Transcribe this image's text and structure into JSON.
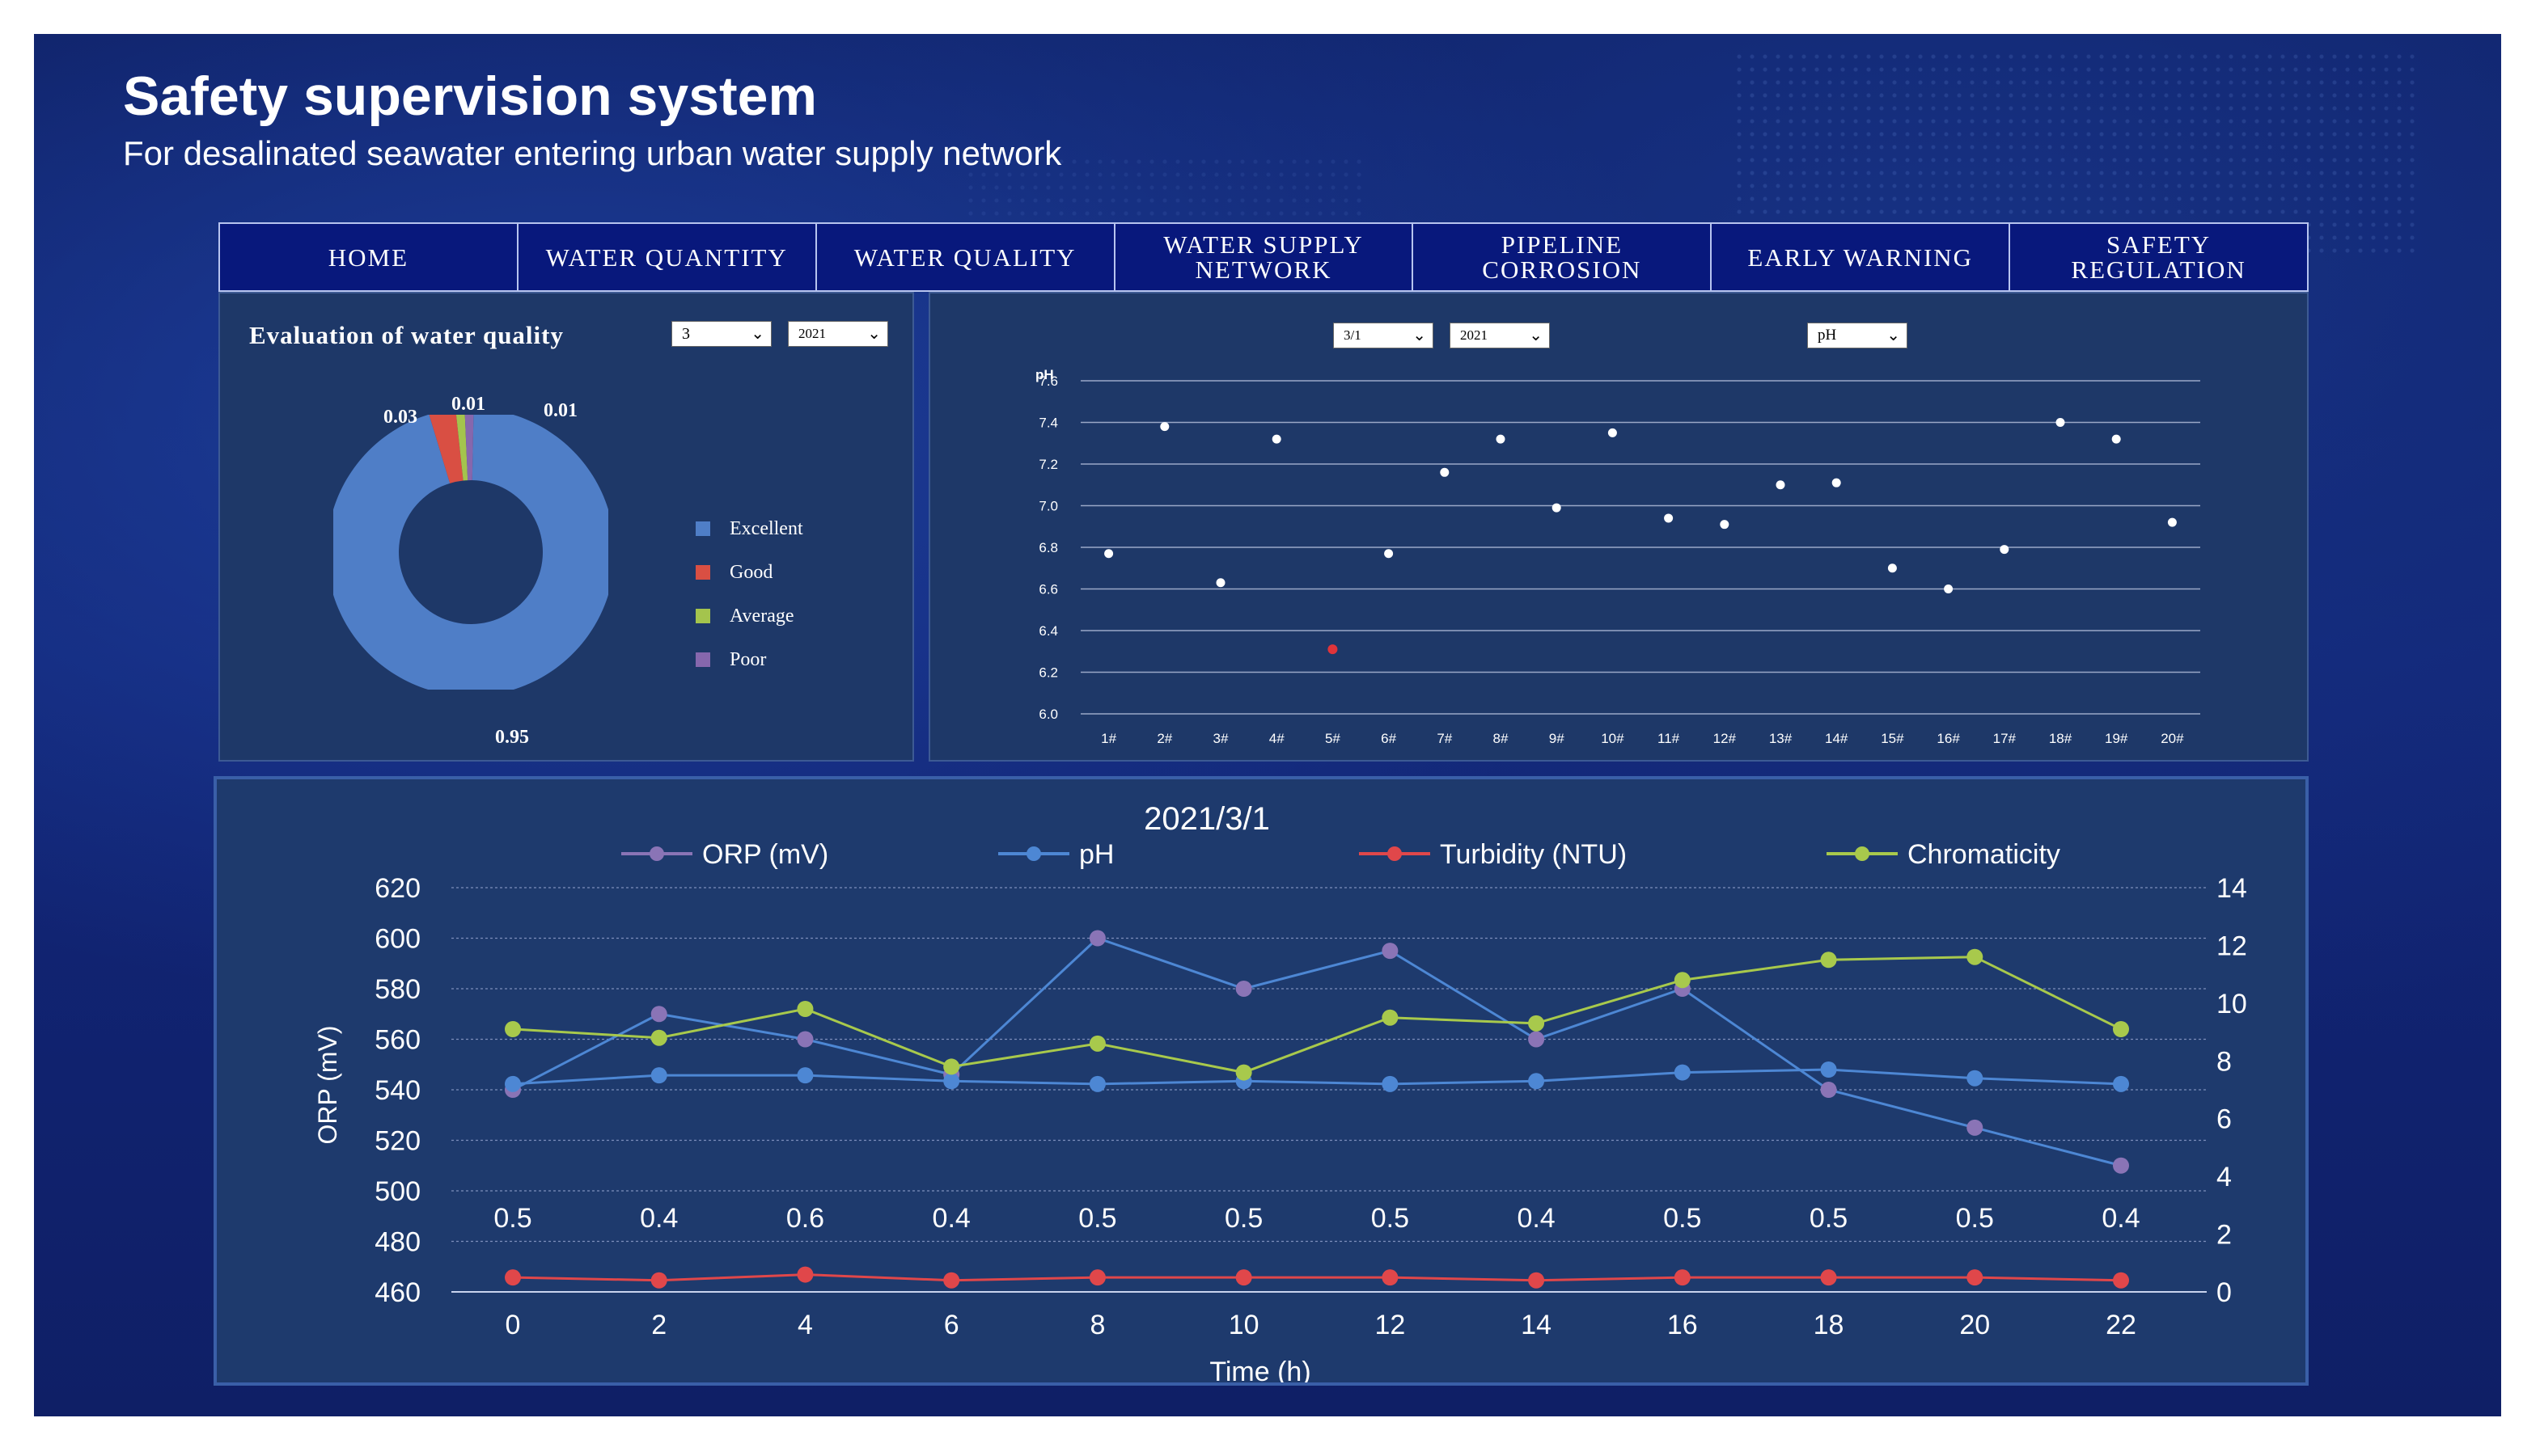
{
  "header": {
    "title": "Safety supervision system",
    "subtitle": "For desalinated seawater entering urban water supply network"
  },
  "nav": {
    "items": [
      {
        "label": "HOME"
      },
      {
        "label": "WATER QUANTITY"
      },
      {
        "label": "WATER QUALITY"
      },
      {
        "label": "WATER SUPPLY NETWORK"
      },
      {
        "label": "PIPELINE CORROSION"
      },
      {
        "label": "EARLY WARNING"
      },
      {
        "label": "SAFETY REGULATION"
      }
    ]
  },
  "evaluation": {
    "title": "Evaluation of water quality",
    "month_select": "3",
    "year_select": "2021"
  },
  "ph_panel": {
    "date_select": "3/1",
    "year_select": "2021",
    "parameter_select": "pH"
  },
  "colors": {
    "excellent": "#4f7ec7",
    "good": "#d94f43",
    "average": "#a4c44d",
    "poor": "#8667ad",
    "ph_point": "#ffffff",
    "ph_alert": "#e0343a",
    "orp": "#8a74b6",
    "ph_line": "#4d87d4",
    "turbidity": "#e0474a",
    "chromaticity": "#a8c94c"
  },
  "chart_data": [
    {
      "type": "pie",
      "labels": [
        "Excellent",
        "Good",
        "Average",
        "Poor"
      ],
      "values": [
        0.95,
        0.03,
        0.01,
        0.01
      ],
      "data_labels": [
        "0.95",
        "0.03",
        "0.01",
        "0.01"
      ],
      "legend": "right"
    },
    {
      "type": "scatter",
      "ylabel": "pH",
      "categories": [
        "1#",
        "2#",
        "3#",
        "4#",
        "5#",
        "6#",
        "7#",
        "8#",
        "9#",
        "10#",
        "11#",
        "12#",
        "13#",
        "14#",
        "15#",
        "16#",
        "17#",
        "18#",
        "19#",
        "20#"
      ],
      "values": [
        6.77,
        7.38,
        6.63,
        7.32,
        6.31,
        6.77,
        7.16,
        7.32,
        6.99,
        7.35,
        6.94,
        6.91,
        7.1,
        7.11,
        6.7,
        6.6,
        6.79,
        7.4,
        7.32,
        6.92
      ],
      "ylim": [
        6.0,
        7.6
      ],
      "yticks": [
        "6.0",
        "6.2",
        "6.4",
        "6.6",
        "6.8",
        "7.0",
        "7.2",
        "7.4",
        "7.6"
      ],
      "grid": true
    },
    {
      "type": "line",
      "title": "2021/3/1",
      "xlabel": "Time (h)",
      "ylabel": "ORP (mV)",
      "x": [
        0,
        2,
        4,
        6,
        8,
        10,
        12,
        14,
        16,
        18,
        20,
        22
      ],
      "xticks": [
        "0",
        "2",
        "4",
        "6",
        "8",
        "10",
        "12",
        "14",
        "16",
        "18",
        "20",
        "22"
      ],
      "ylim": [
        460,
        620
      ],
      "yticks": [
        "460",
        "480",
        "500",
        "520",
        "540",
        "560",
        "580",
        "600",
        "620"
      ],
      "y2lim": [
        0,
        14
      ],
      "y2ticks": [
        "0",
        "2",
        "4",
        "6",
        "8",
        "10",
        "12",
        "14"
      ],
      "legend": "top",
      "grid": true,
      "series": [
        {
          "name": "ORP (mV)",
          "axis": "left",
          "values": [
            540,
            570,
            560,
            546,
            600,
            580,
            595,
            560,
            580,
            540,
            525,
            510
          ]
        },
        {
          "name": "pH",
          "axis": "right",
          "values": [
            7.2,
            7.5,
            7.5,
            7.3,
            7.2,
            7.3,
            7.2,
            7.3,
            7.6,
            7.7,
            7.4,
            7.2
          ]
        },
        {
          "name": "Turbidity (NTU)",
          "axis": "right",
          "values": [
            0.5,
            0.4,
            0.6,
            0.4,
            0.5,
            0.5,
            0.5,
            0.4,
            0.5,
            0.5,
            0.5,
            0.4
          ],
          "data_labels": [
            "0.5",
            "0.4",
            "0.6",
            "0.4",
            "0.5",
            "0.5",
            "0.5",
            "0.4",
            "0.5",
            "0.5",
            "0.5",
            "0.4"
          ]
        },
        {
          "name": "Chromaticity",
          "axis": "right",
          "values": [
            9.1,
            8.8,
            9.8,
            7.8,
            8.6,
            7.6,
            9.5,
            9.3,
            10.8,
            11.5,
            11.6,
            9.1
          ]
        }
      ]
    }
  ]
}
